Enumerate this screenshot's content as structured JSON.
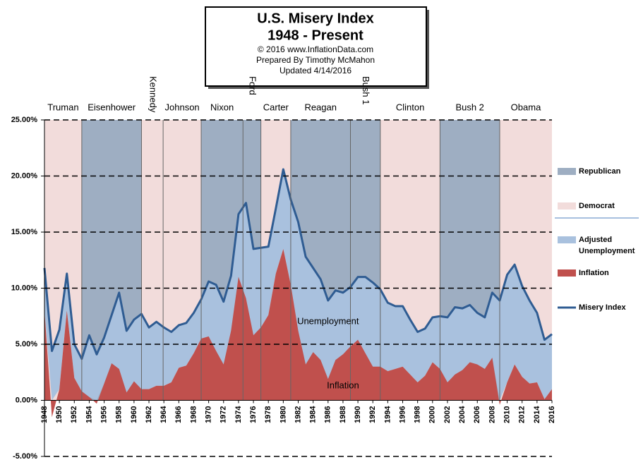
{
  "chart_data": {
    "type": "area",
    "title": "U.S. Misery Index",
    "subtitle": "1948 - Present",
    "credits": [
      "© 2016  www.InflationData.com",
      "Prepared  By Timothy McMahon",
      "Updated  4/14/2016"
    ],
    "annotations": [
      {
        "text": "Unemployment",
        "x": 1986,
        "y": 7
      },
      {
        "text": "Inflation",
        "x": 1988,
        "y": 1.3
      }
    ],
    "x": [
      1948,
      1949,
      1950,
      1951,
      1952,
      1953,
      1954,
      1955,
      1956,
      1957,
      1958,
      1959,
      1960,
      1961,
      1962,
      1963,
      1964,
      1965,
      1966,
      1967,
      1968,
      1969,
      1970,
      1971,
      1972,
      1973,
      1974,
      1975,
      1976,
      1977,
      1978,
      1979,
      1980,
      1981,
      1982,
      1983,
      1984,
      1985,
      1986,
      1987,
      1988,
      1989,
      1990,
      1991,
      1992,
      1993,
      1994,
      1995,
      1996,
      1997,
      1998,
      1999,
      2000,
      2001,
      2002,
      2003,
      2004,
      2005,
      2006,
      2007,
      2008,
      2009,
      2010,
      2011,
      2012,
      2013,
      2014,
      2015,
      2016
    ],
    "series": [
      {
        "name": "Adjusted Unemployment",
        "color": "#a9c1de",
        "kind": "area",
        "stacked": true,
        "values": [
          3.8,
          5.9,
          5.3,
          3.3,
          3.0,
          2.9,
          5.5,
          4.4,
          4.1,
          4.3,
          6.8,
          5.5,
          5.5,
          6.7,
          5.5,
          5.7,
          5.2,
          4.5,
          3.8,
          3.8,
          3.6,
          3.5,
          4.9,
          5.9,
          5.6,
          4.9,
          5.6,
          8.5,
          7.7,
          7.1,
          6.1,
          5.8,
          7.1,
          7.6,
          9.7,
          9.6,
          7.5,
          7.2,
          7.0,
          6.2,
          5.5,
          5.3,
          5.6,
          6.8,
          7.5,
          6.9,
          6.1,
          5.6,
          5.4,
          4.9,
          4.5,
          4.2,
          4.0,
          4.7,
          5.8,
          6.0,
          5.5,
          5.1,
          4.6,
          4.6,
          5.8,
          9.3,
          9.6,
          8.9,
          8.1,
          7.4,
          6.2,
          5.3,
          4.9
        ]
      },
      {
        "name": "Inflation",
        "color": "#c0504d",
        "kind": "area",
        "values": [
          8.0,
          -1.5,
          1.0,
          8.0,
          2.0,
          0.8,
          0.3,
          -0.3,
          1.5,
          3.3,
          2.8,
          0.7,
          1.7,
          1.0,
          1.0,
          1.3,
          1.3,
          1.6,
          2.9,
          3.1,
          4.2,
          5.5,
          5.7,
          4.4,
          3.2,
          6.2,
          11.0,
          9.1,
          5.8,
          6.5,
          7.6,
          11.3,
          13.5,
          10.3,
          6.2,
          3.2,
          4.3,
          3.6,
          1.9,
          3.6,
          4.1,
          4.8,
          5.4,
          4.2,
          3.0,
          3.0,
          2.6,
          2.8,
          3.0,
          2.3,
          1.6,
          2.2,
          3.4,
          2.8,
          1.6,
          2.3,
          2.7,
          3.4,
          3.2,
          2.8,
          3.8,
          -0.4,
          1.6,
          3.2,
          2.1,
          1.5,
          1.6,
          0.1,
          1.0
        ]
      },
      {
        "name": "Misery Index",
        "color": "#2f5c92",
        "kind": "line",
        "values": [
          11.8,
          4.4,
          6.3,
          11.3,
          5.0,
          3.7,
          5.8,
          4.1,
          5.6,
          7.6,
          9.6,
          6.2,
          7.2,
          7.7,
          6.5,
          7.0,
          6.5,
          6.1,
          6.7,
          6.9,
          7.8,
          9.0,
          10.6,
          10.3,
          8.8,
          11.1,
          16.6,
          17.6,
          13.5,
          13.6,
          13.7,
          17.1,
          20.6,
          17.9,
          15.9,
          12.8,
          11.8,
          10.8,
          8.9,
          9.8,
          9.6,
          10.1,
          11.0,
          11.0,
          10.5,
          9.9,
          8.7,
          8.4,
          8.4,
          7.2,
          6.1,
          6.4,
          7.4,
          7.5,
          7.4,
          8.3,
          8.2,
          8.5,
          7.8,
          7.4,
          9.6,
          8.9,
          11.2,
          12.1,
          10.2,
          8.9,
          7.8,
          5.4,
          5.9
        ]
      }
    ],
    "party_legend": [
      {
        "name": "Republican",
        "color": "#9eaec2"
      },
      {
        "name": "Democrat",
        "color": "#f2dcdb"
      }
    ],
    "presidents": [
      {
        "name": "Truman",
        "start": 1948,
        "end": 1953,
        "color": "#f2dcdb",
        "vertical": false
      },
      {
        "name": "Eisenhower",
        "start": 1953,
        "end": 1961,
        "color": "#9eaec2",
        "vertical": false
      },
      {
        "name": "Kennedy",
        "start": 1961,
        "end": 1963.9,
        "color": "#f2dcdb",
        "vertical": true
      },
      {
        "name": "Johnson",
        "start": 1963.9,
        "end": 1969,
        "color": "#f2dcdb",
        "vertical": false
      },
      {
        "name": "Nixon",
        "start": 1969,
        "end": 1974.6,
        "color": "#9eaec2",
        "vertical": false
      },
      {
        "name": "Ford",
        "start": 1974.6,
        "end": 1977,
        "color": "#9eaec2",
        "vertical": true
      },
      {
        "name": "Carter",
        "start": 1977,
        "end": 1981,
        "color": "#f2dcdb",
        "vertical": false
      },
      {
        "name": "Reagan",
        "start": 1981,
        "end": 1989,
        "color": "#9eaec2",
        "vertical": false
      },
      {
        "name": "Bush 1",
        "start": 1989,
        "end": 1993,
        "color": "#9eaec2",
        "vertical": true
      },
      {
        "name": "Clinton",
        "start": 1993,
        "end": 2001,
        "color": "#f2dcdb",
        "vertical": false
      },
      {
        "name": "Bush 2",
        "start": 2001,
        "end": 2009,
        "color": "#9eaec2",
        "vertical": false
      },
      {
        "name": "Obama",
        "start": 2009,
        "end": 2016,
        "color": "#f2dcdb",
        "vertical": false
      }
    ],
    "xlim": [
      1948,
      2016
    ],
    "xticks": [
      1948,
      1950,
      1952,
      1954,
      1956,
      1958,
      1960,
      1962,
      1964,
      1966,
      1968,
      1970,
      1972,
      1974,
      1976,
      1978,
      1980,
      1982,
      1984,
      1986,
      1988,
      1990,
      1992,
      1994,
      1996,
      1998,
      2000,
      2002,
      2004,
      2006,
      2008,
      2010,
      2012,
      2014,
      2016
    ],
    "ylim": [
      -5,
      25
    ],
    "yticks": [
      {
        "value": -5,
        "label": "-5.00%"
      },
      {
        "value": 0,
        "label": "0.00%"
      },
      {
        "value": 5,
        "label": "5.00%"
      },
      {
        "value": 10,
        "label": "10.00%"
      },
      {
        "value": 15,
        "label": "15.00%"
      },
      {
        "value": 20,
        "label": "20.00%"
      },
      {
        "value": 25,
        "label": "25.00%"
      }
    ],
    "grid": true,
    "legend": "right"
  }
}
